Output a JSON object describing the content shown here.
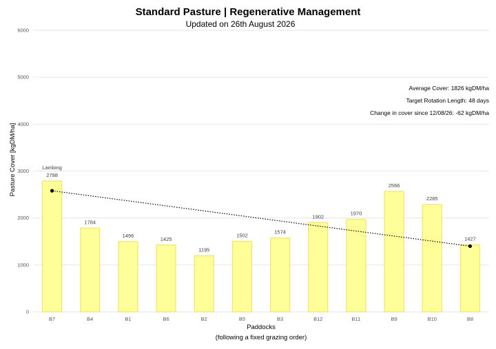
{
  "chart_data": {
    "type": "bar",
    "title": "Standard Pasture | Regenerative Management",
    "subtitle": "Updated on 26th August 2026",
    "xlabel_line1": "Paddocks",
    "xlabel_line2": "(following a fixed grazing order)",
    "ylabel": "Pasture Cover [kgDM/ha]",
    "ylim": [
      0,
      6000
    ],
    "yticks": [
      0,
      1000,
      2000,
      3000,
      4000,
      5000,
      6000
    ],
    "grid": true,
    "categories": [
      "B7",
      "B4",
      "B1",
      "B6",
      "B2",
      "B5",
      "B3",
      "B12",
      "B11",
      "B9",
      "B10",
      "B8"
    ],
    "values": [
      2788,
      1784,
      1496,
      1425,
      1195,
      1502,
      1574,
      1902,
      1970,
      2566,
      2285,
      1427
    ],
    "annotations": [
      {
        "category": "B7",
        "text": "Lambing"
      }
    ],
    "trendline": {
      "style": "dotted",
      "start": {
        "category": "B7",
        "value": 2580
      },
      "end": {
        "category": "B8",
        "value": 1400
      }
    },
    "stats": [
      "Average Cover: 1826 kgDM/ha",
      "Target Rotation Length: 48 days",
      "Change in cover since 12/08/26: -62 kgDM/ha"
    ],
    "colors": {
      "bar_fill": "#ffff99",
      "bar_stroke": "#f5e36b",
      "trendline": "#000000",
      "grid": "#e6e6e6"
    }
  }
}
